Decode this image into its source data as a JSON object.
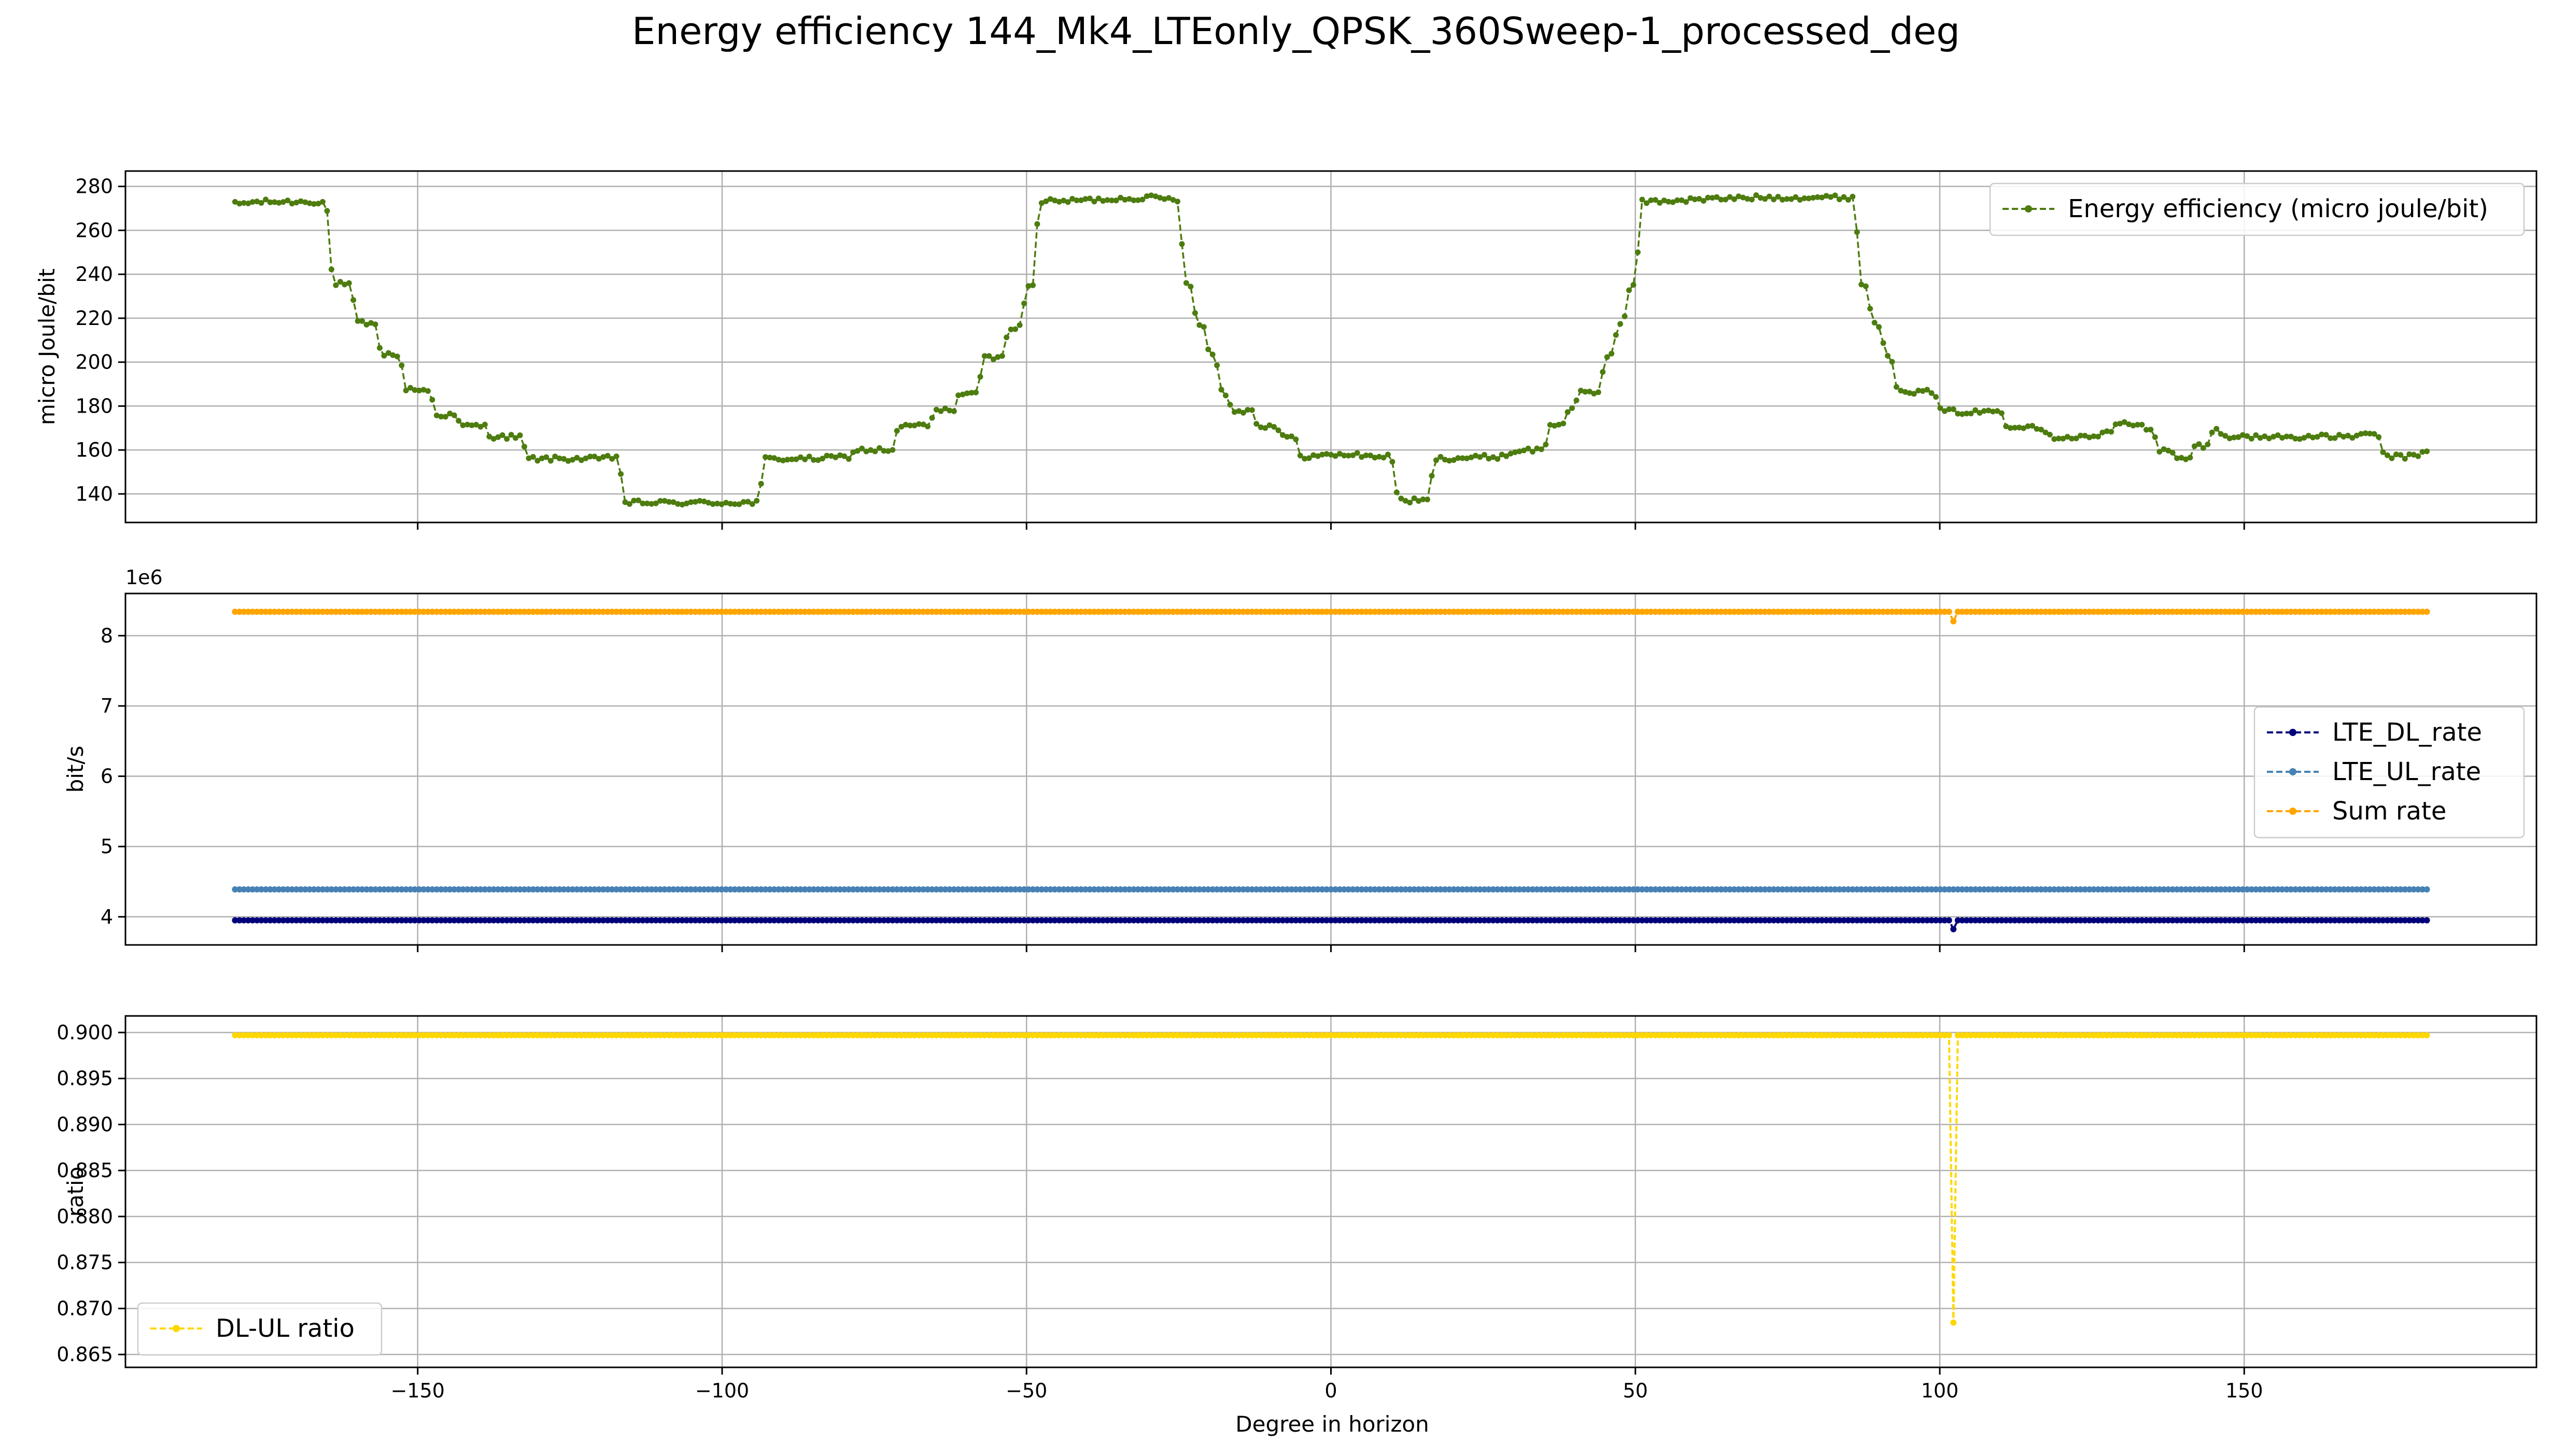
{
  "figure": {
    "title": "Energy efficiency 144_Mk4_LTEonly_QPSK_360Sweep-1_processed_deg",
    "xlabel": "Degree in horizon",
    "x_ticks": [
      "−150",
      "−100",
      "−50",
      "0",
      "50",
      "100",
      "150"
    ]
  },
  "chart_data": [
    {
      "type": "line",
      "ylabel": "micro Joule/bit",
      "ylim": [
        127,
        287
      ],
      "xlim": [
        -198,
        198
      ],
      "y_ticks": [
        "140",
        "160",
        "180",
        "200",
        "220",
        "240",
        "260",
        "280"
      ],
      "grid": true,
      "legend_position": "top-right",
      "series": [
        {
          "name": "Energy efficiency (micro joule/bit)",
          "color": "#4d7c0f",
          "style": "dashed-with-dots",
          "profile": [
            [
              -180,
              272
            ],
            [
              -176,
              273
            ],
            [
              -170,
              273
            ],
            [
              -165,
              273
            ],
            [
              -164,
              236
            ],
            [
              -161,
              235
            ],
            [
              -160,
              218
            ],
            [
              -157,
              217
            ],
            [
              -156,
              204
            ],
            [
              -153,
              203
            ],
            [
              -152,
              188
            ],
            [
              -148,
              187
            ],
            [
              -147,
              176
            ],
            [
              -144,
              176
            ],
            [
              -143,
              171
            ],
            [
              -139,
              171
            ],
            [
              -138,
              166
            ],
            [
              -133,
              166
            ],
            [
              -132,
              156
            ],
            [
              -120,
              156
            ],
            [
              -117,
              157
            ],
            [
              -116,
              136
            ],
            [
              -104,
              136
            ],
            [
              -98,
              136
            ],
            [
              -94,
              136
            ],
            [
              -93,
              156
            ],
            [
              -85,
              156
            ],
            [
              -79,
              157
            ],
            [
              -78,
              160
            ],
            [
              -72,
              160
            ],
            [
              -71,
              171
            ],
            [
              -66,
              171
            ],
            [
              -65,
              178
            ],
            [
              -62,
              178
            ],
            [
              -61,
              186
            ],
            [
              -58,
              186
            ],
            [
              -57,
              202
            ],
            [
              -54,
              202
            ],
            [
              -53,
              216
            ],
            [
              -51,
              216
            ],
            [
              -50,
              234
            ],
            [
              -49,
              234
            ],
            [
              -48,
              273
            ],
            [
              -38,
              274
            ],
            [
              -30,
              275
            ],
            [
              -25,
              274
            ],
            [
              -24,
              236
            ],
            [
              -23,
              235
            ],
            [
              -22,
              218
            ],
            [
              -21,
              217
            ],
            [
              -20,
              204
            ],
            [
              -19,
              203
            ],
            [
              -18,
              188
            ],
            [
              -16,
              178
            ],
            [
              -13,
              178
            ],
            [
              -12,
              171
            ],
            [
              -9,
              171
            ],
            [
              -8,
              166
            ],
            [
              -6,
              166
            ],
            [
              -5,
              157
            ],
            [
              3,
              158
            ],
            [
              8,
              157
            ],
            [
              10,
              157
            ],
            [
              11,
              137
            ],
            [
              16,
              137
            ],
            [
              17,
              156
            ],
            [
              28,
              157
            ],
            [
              31,
              160
            ],
            [
              35,
              160
            ],
            [
              36,
              171
            ],
            [
              38,
              172
            ],
            [
              39,
              178
            ],
            [
              40,
              180
            ],
            [
              41,
              186
            ],
            [
              44,
              186
            ],
            [
              45,
              202
            ],
            [
              46,
              203
            ],
            [
              47,
              216
            ],
            [
              48,
              217
            ],
            [
              49,
              234
            ],
            [
              50,
              235
            ],
            [
              51,
              273
            ],
            [
              60,
              274
            ],
            [
              70,
              275
            ],
            [
              80,
              275
            ],
            [
              86,
              275
            ],
            [
              87,
              236
            ],
            [
              88,
              234
            ],
            [
              89,
              218
            ],
            [
              90,
              217
            ],
            [
              91,
              204
            ],
            [
              92,
              203
            ],
            [
              93,
              188
            ],
            [
              95,
              187
            ],
            [
              96,
              186
            ],
            [
              99,
              187
            ],
            [
              100,
              178
            ],
            [
              105,
              177
            ],
            [
              110,
              178
            ],
            [
              111,
              171
            ],
            [
              115,
              171
            ],
            [
              117,
              170
            ],
            [
              118,
              166
            ],
            [
              125,
              166
            ],
            [
              128,
              168
            ],
            [
              129,
              172
            ],
            [
              133,
              172
            ],
            [
              135,
              168
            ],
            [
              136,
              160
            ],
            [
              138,
              159
            ],
            [
              139,
              156
            ],
            [
              141,
              156
            ],
            [
              142,
              162
            ],
            [
              144,
              162
            ],
            [
              145,
              170
            ],
            [
              146,
              168
            ],
            [
              148,
              166
            ],
            [
              155,
              166
            ],
            [
              165,
              166
            ],
            [
              172,
              167
            ],
            [
              173,
              157
            ],
            [
              178,
              157
            ],
            [
              180,
              160
            ]
          ]
        }
      ]
    },
    {
      "type": "line",
      "ylabel": "bit/s",
      "offset_text": "1e6",
      "ylim": [
        3.6,
        8.6
      ],
      "xlim": [
        -198,
        198
      ],
      "y_ticks": [
        "4",
        "5",
        "6",
        "7",
        "8"
      ],
      "grid": true,
      "legend_position": "center-right",
      "series": [
        {
          "name": "LTE_DL_rate",
          "color": "#00007a",
          "style": "dashed-with-dots",
          "profile": [
            [
              -180,
              3.95
            ],
            [
              101.8,
              3.95
            ],
            [
              102.2,
              3.81
            ],
            [
              102.6,
              3.95
            ],
            [
              180,
              3.95
            ]
          ]
        },
        {
          "name": "LTE_UL_rate",
          "color": "#4682b4",
          "style": "dashed-with-dots",
          "profile": [
            [
              -180,
              4.39
            ],
            [
              180,
              4.39
            ]
          ]
        },
        {
          "name": "Sum rate",
          "color": "#ffa500",
          "style": "dashed-with-dots",
          "profile": [
            [
              -180,
              8.34
            ],
            [
              101.8,
              8.34
            ],
            [
              102.2,
              8.19
            ],
            [
              102.6,
              8.34
            ],
            [
              180,
              8.34
            ]
          ]
        }
      ]
    },
    {
      "type": "line",
      "ylabel": "ratio",
      "ylim": [
        0.8636,
        0.9018
      ],
      "xlim": [
        -198,
        198
      ],
      "y_ticks": [
        "0.865",
        "0.870",
        "0.875",
        "0.880",
        "0.885",
        "0.890",
        "0.895",
        "0.900"
      ],
      "grid": true,
      "legend_position": "lower-left",
      "series": [
        {
          "name": "DL-UL ratio",
          "color": "#ffd700",
          "style": "dashed-with-dots",
          "profile": [
            [
              -180,
              0.8997
            ],
            [
              101.8,
              0.8997
            ],
            [
              102.2,
              0.865
            ],
            [
              102.6,
              0.8997
            ],
            [
              180,
              0.8997
            ]
          ]
        }
      ]
    }
  ]
}
